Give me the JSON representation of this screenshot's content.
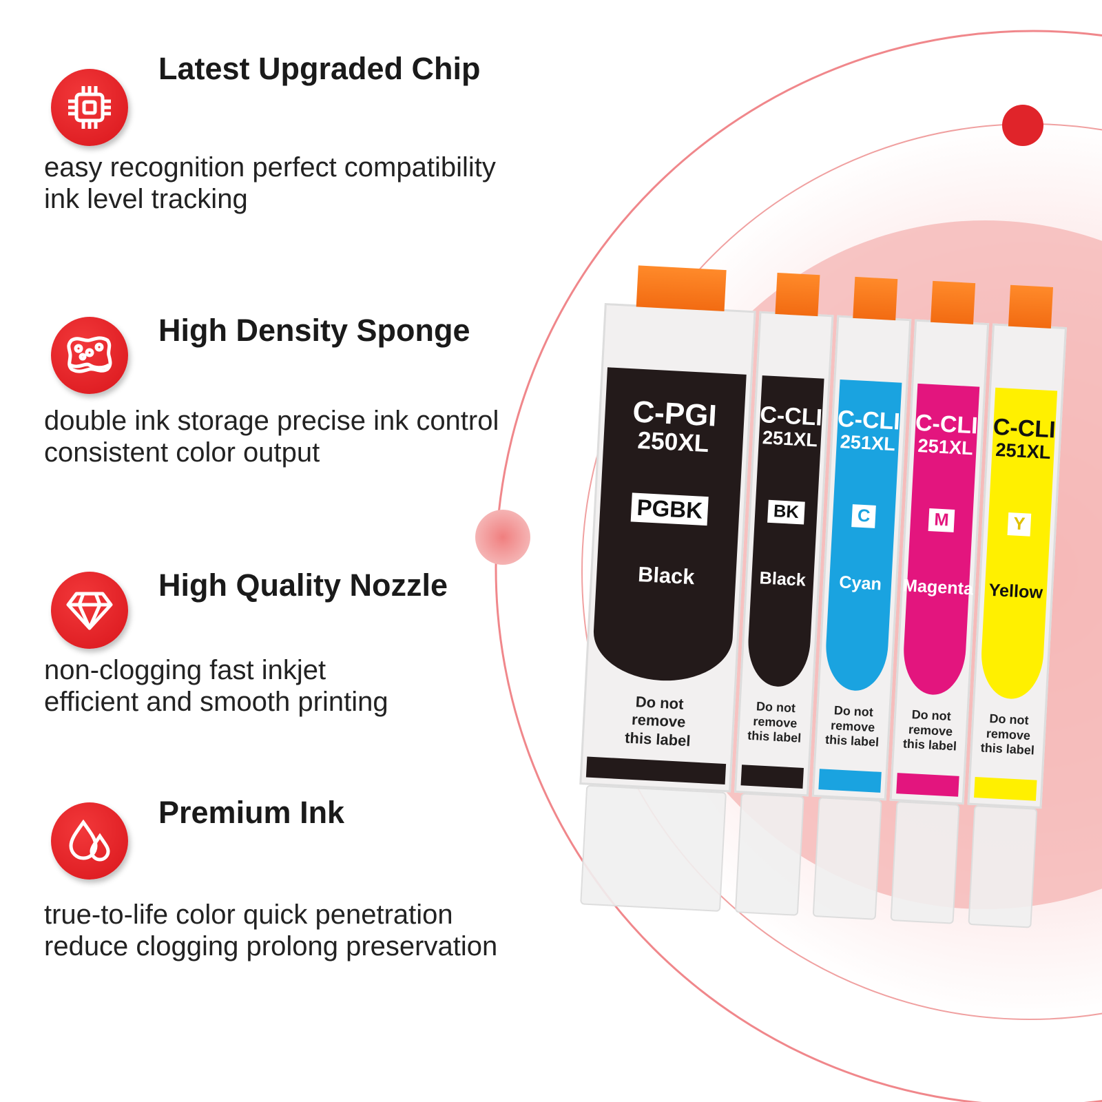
{
  "colors": {
    "accent": "#e0242a",
    "black": "#231a1a",
    "cyan": "#1aa3e0",
    "magenta": "#e3157e",
    "yellow": "#fff000",
    "clip": "#f26b12"
  },
  "features": [
    {
      "icon": "chip-icon",
      "title": "Latest Upgraded Chip",
      "lines": [
        "easy recognition perfect compatibility",
        "ink level tracking"
      ]
    },
    {
      "icon": "sponge-icon",
      "title": "High Density Sponge",
      "lines": [
        "double ink storage precise ink control",
        "consistent color output"
      ]
    },
    {
      "icon": "diamond-icon",
      "title": "High Quality Nozzle",
      "lines": [
        "non-clogging fast inkjet",
        "efficient and smooth printing"
      ]
    },
    {
      "icon": "ink-drops-icon",
      "title": "Premium Ink",
      "lines": [
        "true-to-life color quick penetration",
        "reduce clogging prolong preservation"
      ]
    }
  ],
  "cartridges": [
    {
      "model1": "C-PGI",
      "model2": "250XL",
      "code": "PGBK",
      "name": "Black",
      "warning": [
        "Do not",
        "remove",
        "this label"
      ],
      "color": "#231a1a"
    },
    {
      "model1": "C-CLI",
      "model2": "251XL",
      "code": "BK",
      "name": "Black",
      "warning": [
        "Do not",
        "remove",
        "this label"
      ],
      "color": "#231a1a"
    },
    {
      "model1": "C-CLI",
      "model2": "251XL",
      "code": "C",
      "name": "Cyan",
      "warning": [
        "Do not",
        "remove",
        "this label"
      ],
      "color": "#1aa3e0"
    },
    {
      "model1": "C-CLI",
      "model2": "251XL",
      "code": "M",
      "name": "Magenta",
      "warning": [
        "Do not",
        "remove",
        "this label"
      ],
      "color": "#e3157e"
    },
    {
      "model1": "C-CLI",
      "model2": "251XL",
      "code": "Y",
      "name": "Yellow",
      "warning": [
        "Do not",
        "remove",
        "this label"
      ],
      "color": "#fff000"
    }
  ]
}
